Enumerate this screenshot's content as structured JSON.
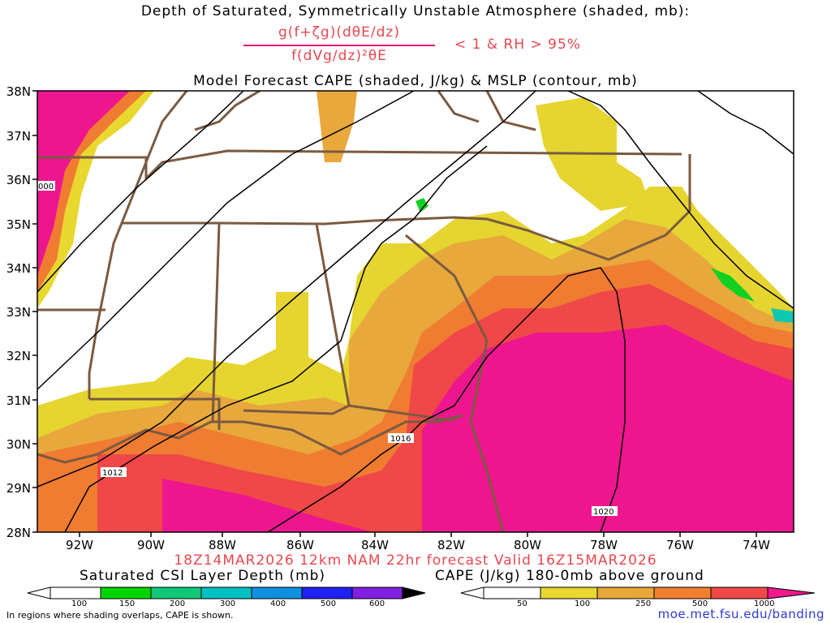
{
  "titles": {
    "line1": "Depth of Saturated, Symmetrically Unstable Atmosphere (shaded, mb):",
    "numerator": "g(f+ζg)(dθE/dz)",
    "denominator": "f(dVg/dz)²θE",
    "condition": "< 1 & RH > 95%",
    "line3": "Model Forecast CAPE (shaded, J/kg) & MSLP (contour, mb)",
    "valid": "18Z14MAR2026 12km NAM 22hr forecast Valid 16Z15MAR2026"
  },
  "axes": {
    "lat_labels": [
      "38N",
      "37N",
      "36N",
      "35N",
      "34N",
      "33N",
      "32N",
      "31N",
      "30N",
      "29N",
      "28N"
    ],
    "lon_labels": [
      "92W",
      "90W",
      "88W",
      "86W",
      "84W",
      "82W",
      "80W",
      "78W",
      "76W",
      "74W"
    ]
  },
  "isobars": {
    "labels": [
      "000",
      "1016",
      "1012",
      "1020"
    ]
  },
  "colorbars": {
    "csi": {
      "title": "Saturated CSI Layer Depth (mb)",
      "ticks": [
        "100",
        "150",
        "200",
        "300",
        "400",
        "500",
        "600"
      ],
      "colors": [
        "#ffffff",
        "#00d400",
        "#10c878",
        "#00c0c0",
        "#1090e0",
        "#2020f0",
        "#8020e0",
        "#000000"
      ]
    },
    "cape": {
      "title": "CAPE (J/kg) 180-0mb above ground",
      "ticks": [
        "50",
        "100",
        "250",
        "500",
        "1000"
      ],
      "colors": [
        "#ffffff",
        "#e8d830",
        "#e8a838",
        "#f08030",
        "#f04848",
        "#f0188c"
      ]
    }
  },
  "footer": {
    "note": "In regions where shading overlaps, CAPE is shown.",
    "source": "moe.met.fsu.edu/banding"
  },
  "legend_colors": {
    "cape_yellow": "#e6d530",
    "cape_orange_light": "#e8a83c",
    "cape_orange": "#f07c32",
    "cape_red": "#f04848",
    "cape_magenta": "#ee168e",
    "csi_green": "#10d020",
    "csi_teal": "#10c8b0",
    "border": "#7a5a40",
    "title_red": "#e8474f"
  }
}
